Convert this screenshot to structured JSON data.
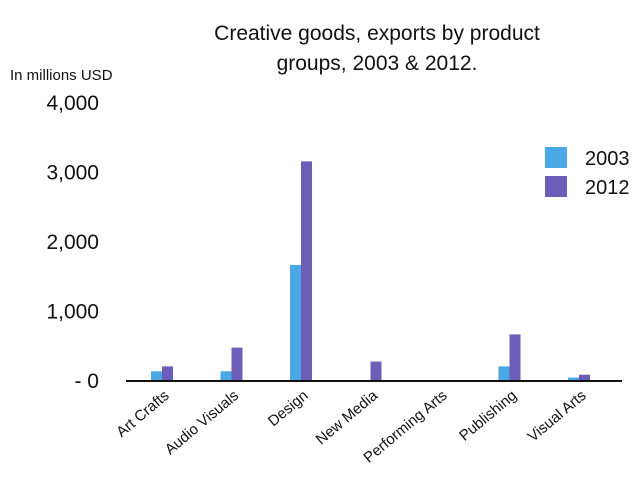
{
  "chart_data": {
    "type": "bar",
    "title_lines": [
      "Creative goods, exports by product",
      "groups, 2003 & 2012."
    ],
    "unit_label": "In millions USD",
    "categories": [
      "Art Crafts",
      "Audio Visuals",
      "Design",
      "New Media",
      "Performing Arts",
      "Publishing",
      "Visual Arts"
    ],
    "series": [
      {
        "name": "2003",
        "color": "#4aa8e6",
        "values": [
          140,
          140,
          1670,
          0,
          0,
          210,
          50
        ]
      },
      {
        "name": "2012",
        "color": "#6b5db8",
        "values": [
          210,
          480,
          3160,
          280,
          0,
          670,
          90
        ]
      }
    ],
    "ylim": [
      0,
      4000
    ],
    "y_ticks": [
      0,
      1000,
      2000,
      3000,
      4000
    ],
    "y_tick_labels": [
      "- 0",
      "1,000",
      "2,000",
      "3,000",
      "4,000"
    ],
    "grid": false,
    "legend_position": "right"
  }
}
